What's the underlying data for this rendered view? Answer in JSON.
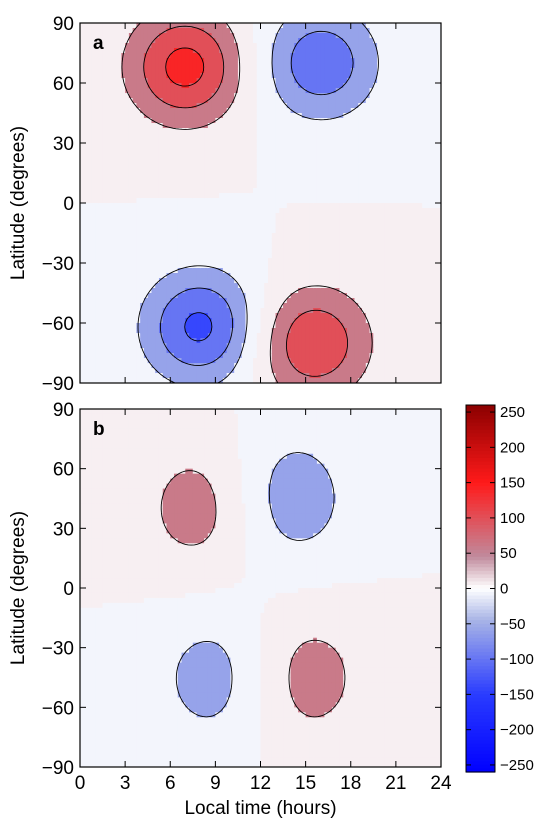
{
  "chart_data": [
    {
      "type": "heatmap",
      "subtype": "filled-contour",
      "panel_label": "a",
      "xlabel": "",
      "ylabel": "Latitude (degrees)",
      "xlim": [
        0,
        24
      ],
      "ylim": [
        -90,
        90
      ],
      "x_ticks": [
        0,
        3,
        6,
        9,
        12,
        15,
        18,
        21,
        24
      ],
      "y_ticks": [
        90,
        60,
        30,
        0,
        -30,
        -60,
        -90
      ],
      "y_tick_labels": [
        "90",
        "60",
        "30",
        "0",
        "−30",
        "−60",
        "−90"
      ],
      "contour_levels": [
        -160,
        -120,
        -80,
        -40,
        0,
        40,
        80,
        120,
        160
      ],
      "features": [
        {
          "sign": "positive",
          "center_hour": 7.0,
          "center_lat": 68,
          "peak": 135,
          "spread_hours": 2.7,
          "spread_lat": 20
        },
        {
          "sign": "negative",
          "center_hour": 16.0,
          "center_lat": 70,
          "peak": -110,
          "spread_hours": 2.7,
          "spread_lat": 20
        },
        {
          "sign": "negative",
          "center_hour": 8.0,
          "center_lat": -62,
          "peak": -130,
          "spread_hours": 2.7,
          "spread_lat": 20
        },
        {
          "sign": "positive",
          "center_hour": 15.5,
          "center_lat": -70,
          "peak": 115,
          "spread_hours": 2.7,
          "spread_lat": 20
        }
      ]
    },
    {
      "type": "heatmap",
      "subtype": "filled-contour",
      "panel_label": "b",
      "xlabel": "Local time (hours)",
      "ylabel": "Latitude (degrees)",
      "xlim": [
        0,
        24
      ],
      "ylim": [
        -90,
        90
      ],
      "x_ticks": [
        0,
        3,
        6,
        9,
        12,
        15,
        18,
        21,
        24
      ],
      "x_tick_labels": [
        "0",
        "3",
        "6",
        "9",
        "12",
        "15",
        "18",
        "21",
        "24"
      ],
      "y_ticks": [
        90,
        60,
        30,
        0,
        -30,
        -60,
        -90
      ],
      "y_tick_labels": [
        "90",
        "60",
        "30",
        "0",
        "−30",
        "−60",
        "−90"
      ],
      "contour_levels": [
        -40,
        0,
        40
      ],
      "features": [
        {
          "sign": "positive",
          "center_hour": 8.0,
          "center_lat": 40,
          "peak": 60,
          "spread_hours": 3.0,
          "spread_lat": 26
        },
        {
          "sign": "negative",
          "center_hour": 14.0,
          "center_lat": 45,
          "peak": -65,
          "spread_hours": 3.0,
          "spread_lat": 26
        },
        {
          "sign": "negative",
          "center_hour": 9.0,
          "center_lat": -45,
          "peak": -60,
          "spread_hours": 3.0,
          "spread_lat": 26
        },
        {
          "sign": "positive",
          "center_hour": 15.0,
          "center_lat": -45,
          "peak": 60,
          "spread_hours": 3.0,
          "spread_lat": 26
        }
      ]
    }
  ],
  "colorbar": {
    "range": [
      -260,
      260
    ],
    "ticks": [
      250,
      200,
      150,
      100,
      50,
      0,
      -50,
      -100,
      -150,
      -200,
      -250
    ],
    "tick_labels": [
      "250",
      "200",
      "150",
      "100",
      "50",
      "0",
      "−50",
      "−100",
      "−150",
      "−200",
      "−250"
    ],
    "colors": {
      "positive_max": "#8b0000",
      "positive_mid": "#ff1a1a",
      "muted_pos": "#c08a9c",
      "neutral": "#ffffff",
      "muted_neg": "#a8b4e6",
      "negative_mid": "#2a3cff",
      "negative_max": "#0000ff"
    }
  }
}
